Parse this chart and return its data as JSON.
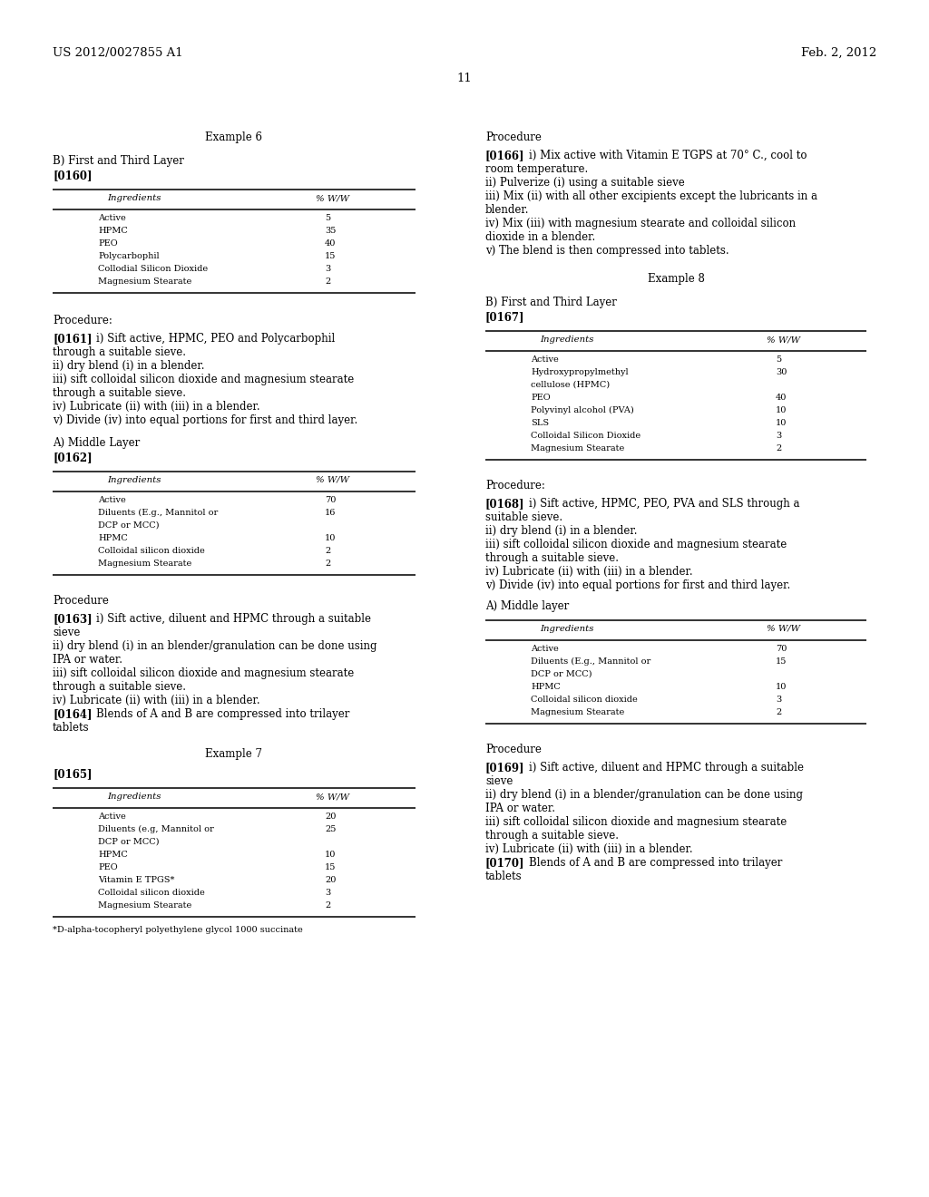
{
  "bg": "#ffffff",
  "header_left": "US 2012/0027855 A1",
  "header_right": "Feb. 2, 2012",
  "page_num": "11",
  "ex6_title": "Example 6",
  "ex6_sub": "B) First and Third Layer",
  "ref160": "[0160]",
  "t1_rows": [
    [
      "Active",
      "5"
    ],
    [
      "HPMC",
      "35"
    ],
    [
      "PEO",
      "40"
    ],
    [
      "Polycarbophil",
      "15"
    ],
    [
      "Collodial Silicon Dioxide",
      "3"
    ],
    [
      "Magnesium Stearate",
      "2"
    ]
  ],
  "proc_label1": "Procedure:",
  "ref161": "[0161]",
  "p161_lines": [
    "i) Sift active, HPMC, PEO and Polycarbophil",
    "through a suitable sieve.",
    "ii) dry blend (i) in a blender.",
    "iii) sift colloidal silicon dioxide and magnesium stearate",
    "through a suitable sieve.",
    "iv) Lubricate (ii) with (iii) in a blender.",
    "v) Divide (iv) into equal portions for first and third layer."
  ],
  "mid_label1": "A) Middle Layer",
  "ref162": "[0162]",
  "t2_rows": [
    [
      "Active",
      "70"
    ],
    [
      "Diluents (E.g., Mannitol or",
      "16"
    ],
    [
      "DCP or MCC)",
      ""
    ],
    [
      "HPMC",
      "10"
    ],
    [
      "Colloidal silicon dioxide",
      "2"
    ],
    [
      "Magnesium Stearate",
      "2"
    ]
  ],
  "proc_label2": "Procedure",
  "ref163": "[0163]",
  "p163_lines": [
    "i) Sift active, diluent and HPMC through a suitable",
    "sieve",
    "ii) dry blend (i) in an blender/granulation can be done using",
    "IPA or water.",
    "iii) sift colloidal silicon dioxide and magnesium stearate",
    "through a suitable sieve.",
    "iv) Lubricate (ii) with (iii) in a blender."
  ],
  "ref164": "[0164]",
  "p164_lines": [
    "Blends of A and B are compressed into trilayer",
    "tablets"
  ],
  "ex7_title": "Example 7",
  "ref165": "[0165]",
  "t3_rows": [
    [
      "Active",
      "20"
    ],
    [
      "Diluents (e.g, Mannitol or",
      "25"
    ],
    [
      "DCP or MCC)",
      ""
    ],
    [
      "HPMC",
      "10"
    ],
    [
      "PEO",
      "15"
    ],
    [
      "Vitamin E TPGS*",
      "20"
    ],
    [
      "Colloidal silicon dioxide",
      "3"
    ],
    [
      "Magnesium Stearate",
      "2"
    ]
  ],
  "footnote": "*D-alpha-tocopheryl polyethylene glycol 1000 succinate",
  "proc_r1": "Procedure",
  "ref166": "[0166]",
  "p166_lines": [
    "i) Mix active with Vitamin E TGPS at 70° C., cool to",
    "room temperature.",
    "ii) Pulverize (i) using a suitable sieve",
    "iii) Mix (ii) with all other excipients except the lubricants in a",
    "blender.",
    "iv) Mix (iii) with magnesium stearate and colloidal silicon",
    "dioxide in a blender.",
    "v) The blend is then compressed into tablets."
  ],
  "ex8_title": "Example 8",
  "ex8_sub": "B) First and Third Layer",
  "ref167": "[0167]",
  "t4_rows": [
    [
      "Active",
      "5"
    ],
    [
      "Hydroxypropylmethyl",
      "30"
    ],
    [
      "cellulose (HPMC)",
      ""
    ],
    [
      "PEO",
      "40"
    ],
    [
      "Polyvinyl alcohol (PVA)",
      "10"
    ],
    [
      "SLS",
      "10"
    ],
    [
      "Colloidal Silicon Dioxide",
      "3"
    ],
    [
      "Magnesium Stearate",
      "2"
    ]
  ],
  "proc_r2": "Procedure:",
  "ref168": "[0168]",
  "p168_lines": [
    "i) Sift active, HPMC, PEO, PVA and SLS through a",
    "suitable sieve.",
    "ii) dry blend (i) in a blender.",
    "iii) sift colloidal silicon dioxide and magnesium stearate",
    "through a suitable sieve.",
    "iv) Lubricate (ii) with (iii) in a blender.",
    "v) Divide (iv) into equal portions for first and third layer."
  ],
  "mid_r2": "A) Middle layer",
  "t5_rows": [
    [
      "Active",
      "70"
    ],
    [
      "Diluents (E.g., Mannitol or",
      "15"
    ],
    [
      "DCP or MCC)",
      ""
    ],
    [
      "HPMC",
      "10"
    ],
    [
      "Colloidal silicon dioxide",
      "3"
    ],
    [
      "Magnesium Stearate",
      "2"
    ]
  ],
  "proc_r3": "Procedure",
  "ref169": "[0169]",
  "p169_lines": [
    "i) Sift active, diluent and HPMC through a suitable",
    "sieve",
    "ii) dry blend (i) in a blender/granulation can be done using",
    "IPA or water.",
    "iii) sift colloidal silicon dioxide and magnesium stearate",
    "through a suitable sieve.",
    "iv) Lubricate (ii) with (iii) in a blender."
  ],
  "ref170": "[0170]",
  "p170_lines": [
    "Blends of A and B are compressed into trilayer",
    "tablets"
  ]
}
